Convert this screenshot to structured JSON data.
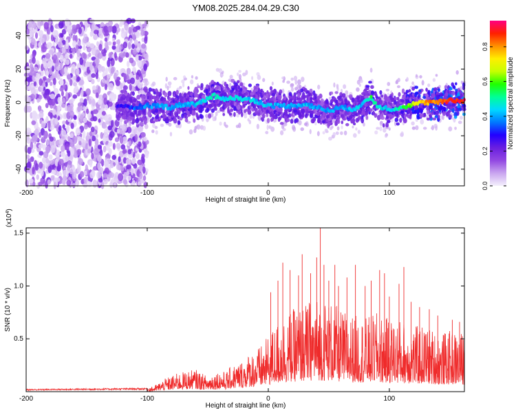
{
  "chart_data": [
    {
      "type": "heatmap",
      "title": "YM08.2025.284.04.29.C30",
      "xlabel": "Height of straight line (km)",
      "ylabel": "Frequency (Hz)",
      "xlim": [
        -200,
        162
      ],
      "ylim": [
        -50,
        49
      ],
      "x_ticks": [
        -200,
        -100,
        0,
        100
      ],
      "y_ticks": [
        -40,
        -20,
        0,
        20,
        40
      ],
      "colorbar": {
        "label": "Normalized spectral amplitude",
        "range": [
          0.0,
          0.95
        ],
        "ticks": [
          "0.0",
          "0.2",
          "0.4",
          "0.6",
          "0.8"
        ],
        "colors": [
          "#f4f0fc",
          "#c9a5ef",
          "#9248e2",
          "#6a1fe0",
          "#2200ff",
          "#0078ff",
          "#00d9ff",
          "#00ff96",
          "#1fff00",
          "#c6ff00",
          "#ffee00",
          "#ff9000",
          "#ff2000",
          "#ff0080"
        ]
      },
      "ridge": {
        "x": [
          -125,
          -110,
          -100,
          -90,
          -80,
          -70,
          -60,
          -50,
          -45,
          -40,
          -30,
          -20,
          -10,
          0,
          10,
          20,
          30,
          40,
          50,
          60,
          70,
          80,
          85,
          90,
          100,
          110,
          120,
          130,
          140,
          150,
          160
        ],
        "y": [
          -3,
          -3,
          -2,
          -2,
          -3,
          -1,
          -1,
          2,
          4,
          2,
          3,
          2,
          1,
          -2,
          -2,
          -2,
          -1,
          -3,
          -5,
          -3,
          -4,
          0,
          3,
          -2,
          -4,
          -3,
          -1,
          0,
          0,
          1,
          1
        ],
        "peak_amplitude": [
          0.3,
          0.38,
          0.42,
          0.45,
          0.44,
          0.46,
          0.47,
          0.5,
          0.52,
          0.5,
          0.5,
          0.48,
          0.46,
          0.46,
          0.44,
          0.44,
          0.46,
          0.44,
          0.42,
          0.44,
          0.46,
          0.48,
          0.58,
          0.5,
          0.46,
          0.55,
          0.7,
          0.82,
          0.88,
          0.92,
          0.94
        ]
      },
      "noise_region": {
        "x": [
          -200,
          -100
        ],
        "y": [
          -50,
          49
        ],
        "amplitude": [
          0.02,
          0.22
        ]
      }
    },
    {
      "type": "line",
      "xlabel": "Height of straight line (km)",
      "ylabel": "SNR (10 * v/v)",
      "scale_label": "(x10^4)",
      "xlim": [
        -200,
        162
      ],
      "ylim": [
        0,
        1.55
      ],
      "x_ticks": [
        -200,
        -100,
        0,
        100
      ],
      "y_ticks": [
        "0.5",
        "1.0",
        "1.5"
      ],
      "color": "#ef2b2b",
      "envelope": {
        "x": [
          -200,
          -150,
          -100,
          -95,
          -90,
          -85,
          -80,
          -75,
          -70,
          -65,
          -60,
          -55,
          -50,
          -45,
          -40,
          -35,
          -30,
          -25,
          -20,
          -15,
          -10,
          -5,
          0,
          5,
          10,
          15,
          20,
          25,
          30,
          35,
          40,
          45,
          50,
          55,
          60,
          65,
          70,
          75,
          80,
          85,
          90,
          95,
          100,
          105,
          110,
          115,
          120,
          125,
          130,
          135,
          140,
          145,
          150,
          155,
          160,
          162
        ],
        "y": [
          0.02,
          0.025,
          0.03,
          0.04,
          0.07,
          0.1,
          0.12,
          0.14,
          0.15,
          0.16,
          0.17,
          0.14,
          0.12,
          0.15,
          0.16,
          0.15,
          0.2,
          0.22,
          0.25,
          0.3,
          0.32,
          0.36,
          0.42,
          0.5,
          0.55,
          0.6,
          0.62,
          0.65,
          0.66,
          0.7,
          0.72,
          0.7,
          0.7,
          0.66,
          0.62,
          0.6,
          0.58,
          0.58,
          0.56,
          0.58,
          0.6,
          0.56,
          0.56,
          0.55,
          0.55,
          0.52,
          0.5,
          0.5,
          0.5,
          0.48,
          0.45,
          0.45,
          0.46,
          0.46,
          0.45,
          0.44
        ]
      },
      "spikes": [
        {
          "x": 2,
          "y": 0.94
        },
        {
          "x": 8,
          "y": 1.05
        },
        {
          "x": 12,
          "y": 1.22
        },
        {
          "x": 18,
          "y": 1.15
        },
        {
          "x": 25,
          "y": 1.1
        },
        {
          "x": 28,
          "y": 1.3
        },
        {
          "x": 35,
          "y": 1.12
        },
        {
          "x": 40,
          "y": 1.27
        },
        {
          "x": 43,
          "y": 1.55
        },
        {
          "x": 46,
          "y": 1.2
        },
        {
          "x": 50,
          "y": 1.05
        },
        {
          "x": 55,
          "y": 1.2
        },
        {
          "x": 58,
          "y": 1.0
        },
        {
          "x": 65,
          "y": 1.08
        },
        {
          "x": 72,
          "y": 1.2
        },
        {
          "x": 80,
          "y": 1.0
        },
        {
          "x": 85,
          "y": 1.05
        },
        {
          "x": 92,
          "y": 1.15
        },
        {
          "x": 96,
          "y": 1.12
        },
        {
          "x": 100,
          "y": 0.9
        },
        {
          "x": 108,
          "y": 1.02
        },
        {
          "x": 112,
          "y": 1.18
        },
        {
          "x": 118,
          "y": 0.85
        },
        {
          "x": 125,
          "y": 0.8
        },
        {
          "x": 133,
          "y": 0.78
        },
        {
          "x": 140,
          "y": 0.72
        },
        {
          "x": 152,
          "y": 0.68
        },
        {
          "x": 158,
          "y": 0.66
        }
      ]
    }
  ]
}
